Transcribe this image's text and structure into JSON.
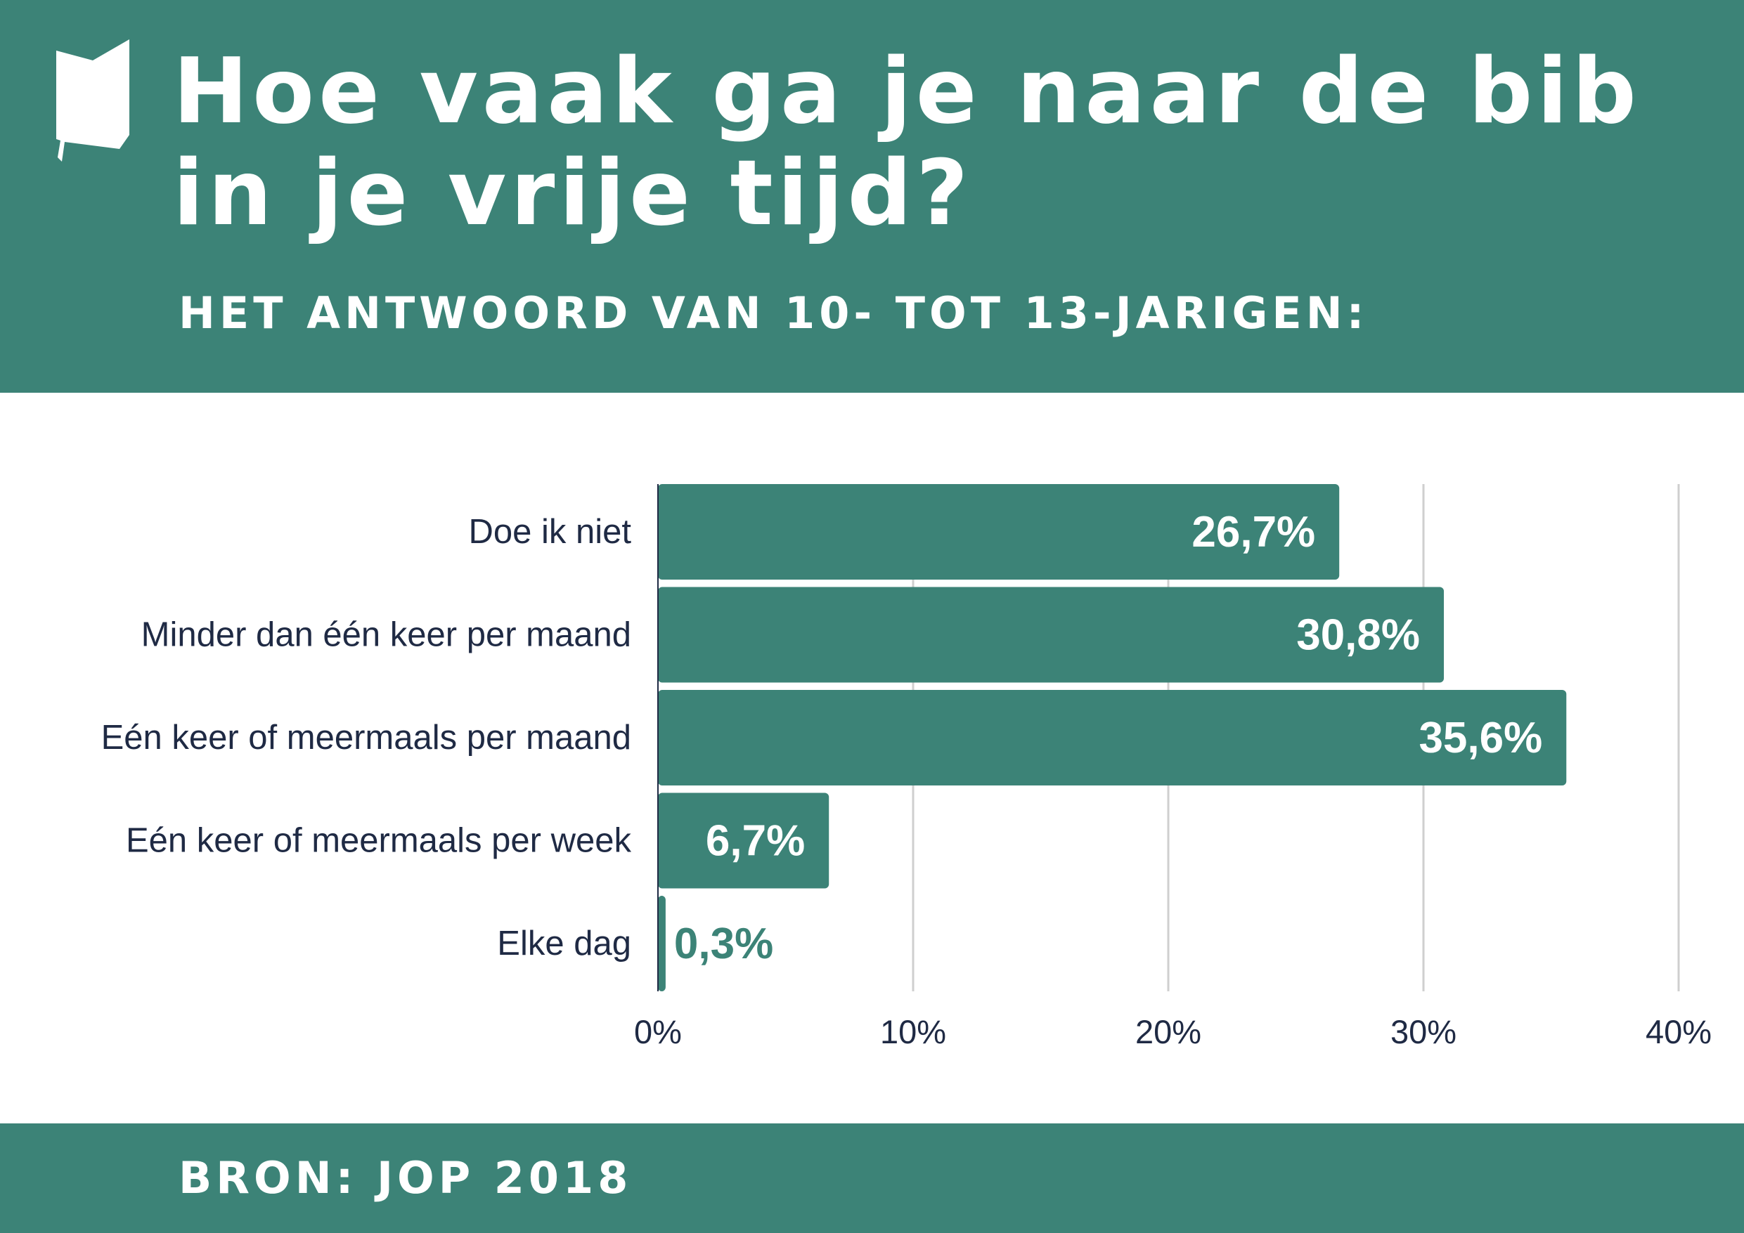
{
  "title": "Hoe vaak ga je naar de bib in je vrije tijd?",
  "subtitle": "HET ANTWOORD VAN 10- TOT 13-JARIGEN:",
  "source": "BRON: JOP 2018",
  "logo_icon": "book-speech-bubble-icon",
  "colors": {
    "brand": "#3c8377",
    "bar": "#3c8377",
    "label_text": "#1f2a44",
    "grid": "#cfcfcf",
    "value_inside": "#ffffff",
    "value_outside": "#3c8377"
  },
  "chart_data": {
    "type": "bar",
    "orientation": "horizontal",
    "categories": [
      "Doe ik niet",
      "Minder dan één keer per maand",
      "Eén keer of meermaals per maand",
      "Eén keer of meermaals per week",
      "Elke dag"
    ],
    "values": [
      26.7,
      30.8,
      35.6,
      6.7,
      0.3
    ],
    "value_labels": [
      "26,7%",
      "30,8%",
      "35,6%",
      "6,7%",
      "0,3%"
    ],
    "xlim": [
      0,
      40
    ],
    "xticks": [
      0,
      10,
      20,
      30,
      40
    ],
    "xtick_labels": [
      "0%",
      "10%",
      "20%",
      "30%",
      "40%"
    ],
    "grid": true,
    "legend": false
  }
}
